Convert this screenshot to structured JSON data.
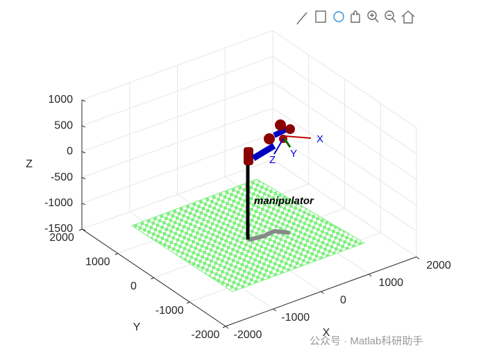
{
  "chart_data": {
    "type": "3d",
    "xlabel": "X",
    "ylabel": "Y",
    "zlabel": "Z",
    "xlim": [
      -2000,
      2000
    ],
    "ylim": [
      -2000,
      2000
    ],
    "zlim": [
      -1500,
      1000
    ],
    "xticks": [
      -2000,
      -1000,
      0,
      1000,
      2000
    ],
    "yticks": [
      -2000,
      -1000,
      0,
      1000,
      2000
    ],
    "zticks": [
      -1500,
      -1000,
      -500,
      0,
      500,
      1000
    ],
    "grid": true,
    "annotations": [
      "manipulator",
      "X",
      "Y",
      "Z"
    ],
    "watermark": "公众号 · Matlab科研助手"
  }
}
